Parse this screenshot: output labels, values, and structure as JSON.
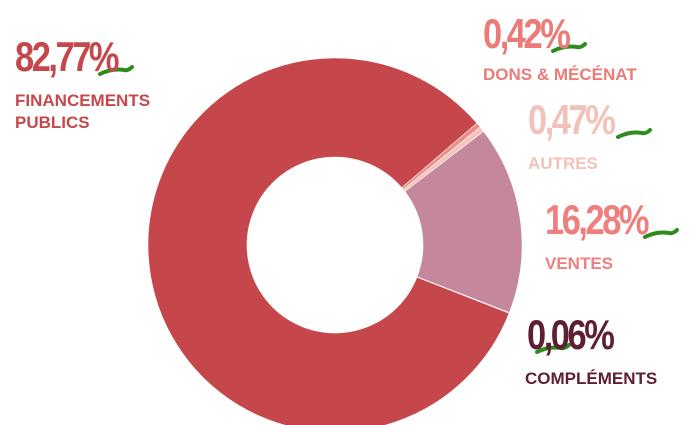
{
  "chart_data": {
    "type": "donut",
    "categories": [
      "FINANCEMENTS PUBLICS",
      "DONS & MÉCÉNAT",
      "AUTRES",
      "VENTES",
      "COMPLÉMENTS"
    ],
    "values": [
      82.77,
      0.42,
      0.47,
      16.28,
      0.06
    ],
    "value_labels": [
      "82,77%",
      "0,42%",
      "0,47%",
      "16,28%",
      "0,06%"
    ],
    "colors": [
      "#c6474b",
      "#f08a86",
      "#f3c4bc",
      "#c4879b",
      "#5e1f33"
    ],
    "label_colors": [
      "#c6474b",
      "#ec7b78",
      "#f2c2ba",
      "#ef7f7e",
      "#5e1f33"
    ]
  }
}
